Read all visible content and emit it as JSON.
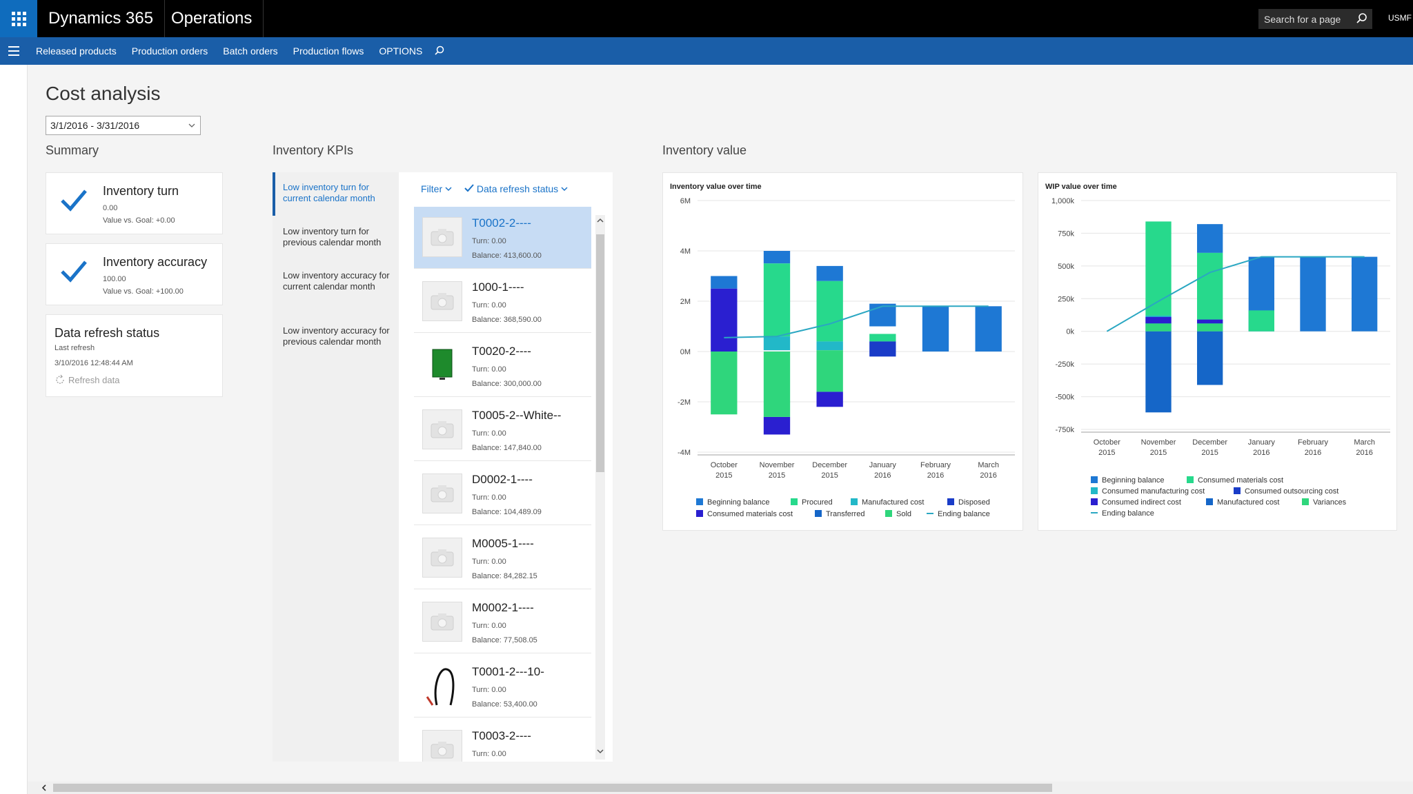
{
  "topbar": {
    "brand": "Dynamics 365",
    "app": "Operations",
    "search_placeholder": "Search for a page",
    "company": "USMF"
  },
  "navbar": {
    "items": [
      "Released products",
      "Production orders",
      "Batch orders",
      "Production flows",
      "OPTIONS"
    ]
  },
  "page": {
    "title": "Cost analysis",
    "date_range": "3/1/2016 - 3/31/2016"
  },
  "summary": {
    "heading": "Summary",
    "tiles": [
      {
        "title": "Inventory turn",
        "value": "0.00",
        "goal": "Value vs. Goal: +0.00"
      },
      {
        "title": "Inventory accuracy",
        "value": "100.00",
        "goal": "Value vs. Goal: +100.00"
      }
    ],
    "refresh": {
      "title": "Data refresh status",
      "subtitle": "Last refresh",
      "date": "3/10/2016 12:48:44 AM",
      "button": "Refresh data"
    }
  },
  "kpis": {
    "heading": "Inventory KPIs",
    "nav": [
      "Low inventory turn for current calendar month",
      "Low inventory turn for previous calendar month",
      "Low inventory accuracy for current calendar month",
      "Low inventory accuracy for previous calendar month"
    ],
    "filter": "Filter",
    "refresh_status": "Data refresh status",
    "products": [
      {
        "name": "T0002-2----",
        "turn": "Turn: 0.00",
        "balance": "Balance: 413,600.00",
        "image": "camera-placeholder"
      },
      {
        "name": "1000-1----",
        "turn": "Turn: 0.00",
        "balance": "Balance: 368,590.00",
        "image": "camera-placeholder"
      },
      {
        "name": "T0020-2----",
        "turn": "Turn: 0.00",
        "balance": "Balance: 300,000.00",
        "image": "green-monitor"
      },
      {
        "name": "T0005-2--White--",
        "turn": "Turn: 0.00",
        "balance": "Balance: 147,840.00",
        "image": "camera-placeholder"
      },
      {
        "name": "D0002-1----",
        "turn": "Turn: 0.00",
        "balance": "Balance: 104,489.09",
        "image": "camera-placeholder"
      },
      {
        "name": "M0005-1----",
        "turn": "Turn: 0.00",
        "balance": "Balance: 84,282.15",
        "image": "camera-placeholder"
      },
      {
        "name": "M0002-1----",
        "turn": "Turn: 0.00",
        "balance": "Balance: 77,508.05",
        "image": "camera-placeholder"
      },
      {
        "name": "T0001-2---10-",
        "turn": "Turn: 0.00",
        "balance": "Balance: 53,400.00",
        "image": "cable"
      },
      {
        "name": "T0003-2----",
        "turn": "Turn: 0.00",
        "balance": "",
        "image": "camera-placeholder"
      }
    ]
  },
  "inventory_value": {
    "heading": "Inventory value"
  },
  "colors": {
    "accent": "#1a5ea8",
    "link": "#1a73c8",
    "beginning_balance": "#1e78d4",
    "procured": "#27d98c",
    "manufactured_cost": "#22b8c8",
    "disposed": "#1a3cc8",
    "consumed_materials_cost": "#2a1fd0",
    "transferred": "#1566c8",
    "sold": "#2fd67c",
    "ending_balance": "#2aa7c2"
  },
  "chart_data": [
    {
      "type": "bar",
      "title": "Inventory value over time",
      "categories": [
        "October 2015",
        "November 2015",
        "December 2015",
        "January 2016",
        "February 2016",
        "March 2016"
      ],
      "ylim": [
        -4,
        6
      ],
      "y_ticks": [
        "6M",
        "4M",
        "2M",
        "0M",
        "-2M",
        "-4M"
      ],
      "series": [
        {
          "name": "Beginning balance",
          "color": "#1e78d4",
          "segments": [
            [
              2.5,
              3.0
            ],
            [
              3.5,
              4.0
            ],
            [
              2.8,
              3.4
            ],
            [
              1.0,
              1.9
            ],
            [
              0,
              1.8
            ],
            [
              0,
              1.8
            ]
          ]
        },
        {
          "name": "Procured",
          "color": "#27d98c",
          "segments": [
            [
              0,
              0
            ],
            [
              0.6,
              3.5
            ],
            [
              0.4,
              2.8
            ],
            [
              0.4,
              0.7
            ],
            [
              0,
              0
            ],
            [
              0,
              0
            ]
          ]
        },
        {
          "name": "Manufactured cost",
          "color": "#22b8c8",
          "segments": [
            [
              0,
              0
            ],
            [
              0.05,
              0.6
            ],
            [
              0.05,
              0.4
            ],
            [
              0,
              0
            ],
            [
              0,
              0
            ],
            [
              0,
              0
            ]
          ]
        },
        {
          "name": "Disposed",
          "color": "#1a3cc8",
          "segments": [
            [
              0,
              0
            ],
            [
              0,
              0
            ],
            [
              0,
              0
            ],
            [
              -0.2,
              0.4
            ],
            [
              0,
              0
            ],
            [
              0,
              0
            ]
          ]
        },
        {
          "name": "Consumed materials cost",
          "color": "#2a1fd0",
          "segments": [
            [
              0,
              2.5
            ],
            [
              -2.6,
              -3.3
            ],
            [
              -1.6,
              -2.2
            ],
            [
              0,
              0
            ],
            [
              0,
              0
            ],
            [
              0,
              0
            ]
          ]
        },
        {
          "name": "Transferred",
          "color": "#1566c8",
          "segments": [
            [
              0,
              0
            ],
            [
              0,
              0
            ],
            [
              -1.6,
              -1.6
            ],
            [
              0,
              0
            ],
            [
              0,
              0
            ],
            [
              0,
              0
            ]
          ]
        },
        {
          "name": "Sold",
          "color": "#2fd67c",
          "segments": [
            [
              0,
              -2.5
            ],
            [
              0,
              -2.6
            ],
            [
              0.05,
              -1.6
            ],
            [
              0,
              0
            ],
            [
              0,
              0
            ],
            [
              0,
              0
            ]
          ]
        }
      ],
      "ending_balance": [
        0.55,
        0.6,
        1.1,
        1.8,
        1.8,
        1.8
      ],
      "legend": [
        "Beginning balance",
        "Procured",
        "Manufactured cost",
        "Disposed",
        "Consumed materials cost",
        "Transferred",
        "Sold",
        "Ending balance"
      ],
      "legend_position": "bottom"
    },
    {
      "type": "bar",
      "title": "WIP value over time",
      "categories": [
        "October 2015",
        "November 2015",
        "December 2015",
        "January 2016",
        "February 2016",
        "March 2016"
      ],
      "ylim": [
        -750,
        1000
      ],
      "y_ticks": [
        "1,000k",
        "750k",
        "500k",
        "250k",
        "0k",
        "-250k",
        "-500k",
        "-750k"
      ],
      "series": [
        {
          "name": "Beginning balance",
          "color": "#1e78d4",
          "segments": [
            [
              0,
              0
            ],
            [
              0,
              0
            ],
            [
              600,
              820
            ],
            [
              0,
              570
            ],
            [
              0,
              570
            ],
            [
              0,
              570
            ]
          ]
        },
        {
          "name": "Consumed materials cost",
          "color": "#27d98c",
          "segments": [
            [
              0,
              0
            ],
            [
              120,
              840
            ],
            [
              90,
              600
            ],
            [
              0,
              160
            ],
            [
              0,
              0
            ],
            [
              0,
              0
            ]
          ]
        },
        {
          "name": "Consumed manufacturing cost",
          "color": "#22b8c8",
          "segments": [
            [
              0,
              0
            ],
            [
              0,
              120
            ],
            [
              0,
              90
            ],
            [
              0,
              0
            ],
            [
              0,
              0
            ],
            [
              0,
              0
            ]
          ]
        },
        {
          "name": "Consumed outsourcing cost",
          "color": "#1a3cc8",
          "segments": [
            [
              0,
              0
            ],
            [
              0,
              0
            ],
            [
              0,
              0
            ],
            [
              0,
              0
            ],
            [
              0,
              0
            ],
            [
              0,
              0
            ]
          ]
        },
        {
          "name": "Consumed indirect cost",
          "color": "#2a1fd0",
          "segments": [
            [
              0,
              0
            ],
            [
              60,
              110
            ],
            [
              60,
              90
            ],
            [
              0,
              0
            ],
            [
              0,
              0
            ],
            [
              0,
              0
            ]
          ]
        },
        {
          "name": "Manufactured cost",
          "color": "#1566c8",
          "segments": [
            [
              0,
              0
            ],
            [
              -620,
              0
            ],
            [
              -410,
              0
            ],
            [
              0,
              0
            ],
            [
              0,
              0
            ],
            [
              0,
              0
            ]
          ]
        },
        {
          "name": "Variances",
          "color": "#2fd67c",
          "segments": [
            [
              0,
              0
            ],
            [
              0,
              60
            ],
            [
              0,
              60
            ],
            [
              0,
              0
            ],
            [
              0,
              0
            ],
            [
              0,
              0
            ]
          ]
        }
      ],
      "ending_balance": [
        0,
        230,
        450,
        570,
        570,
        570
      ],
      "legend": [
        "Beginning balance",
        "Consumed materials cost",
        "Consumed manufacturing cost",
        "Consumed outsourcing cost",
        "Consumed indirect cost",
        "Manufactured cost",
        "Variances",
        "Ending balance"
      ],
      "legend_position": "bottom"
    }
  ]
}
